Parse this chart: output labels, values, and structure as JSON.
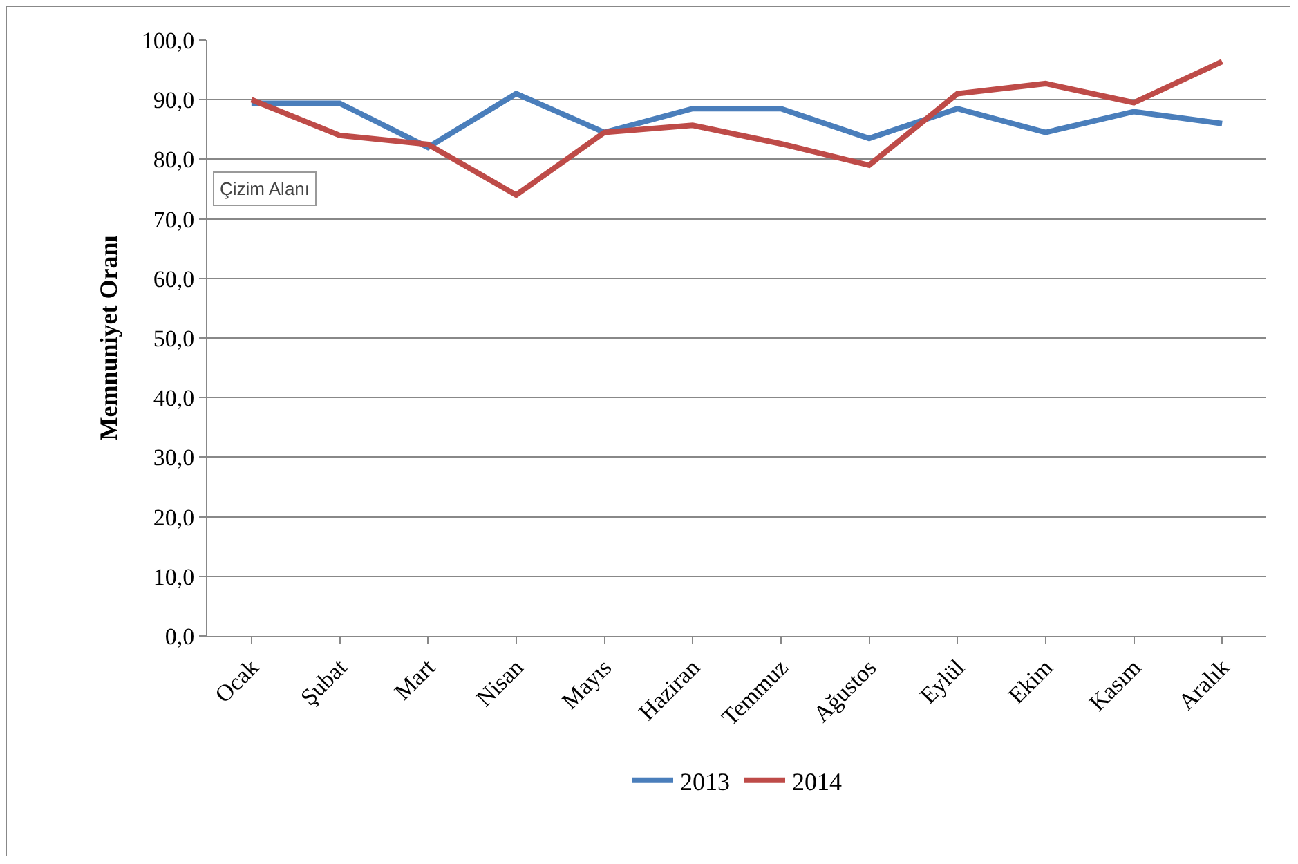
{
  "chart_data": {
    "type": "line",
    "ylabel": "Memnuniyet Oranı",
    "categories": [
      "Ocak",
      "Şubat",
      "Mart",
      "Nisan",
      "Mayıs",
      "Haziran",
      "Temmuz",
      "Ağustos",
      "Eylül",
      "Ekim",
      "Kasım",
      "Aralık"
    ],
    "series": [
      {
        "name": "2013",
        "color": "#4a7ebb",
        "values": [
          89.4,
          89.4,
          82.0,
          91.0,
          84.5,
          88.5,
          88.5,
          83.5,
          88.5,
          84.5,
          88.0,
          86.0
        ]
      },
      {
        "name": "2014",
        "color": "#be4b48",
        "values": [
          90.0,
          84.0,
          82.5,
          74.0,
          84.5,
          85.7,
          82.6,
          79.0,
          91.0,
          92.7,
          89.5,
          96.4
        ]
      }
    ],
    "ylim": [
      0,
      100
    ],
    "yticks": [
      {
        "value": 0,
        "label": "0,0"
      },
      {
        "value": 10,
        "label": "10,0"
      },
      {
        "value": 20,
        "label": "20,0"
      },
      {
        "value": 30,
        "label": "30,0"
      },
      {
        "value": 40,
        "label": "40,0"
      },
      {
        "value": 50,
        "label": "50,0"
      },
      {
        "value": 60,
        "label": "60,0"
      },
      {
        "value": 70,
        "label": "70,0"
      },
      {
        "value": 80,
        "label": "80,0"
      },
      {
        "value": 90,
        "label": "90,0"
      },
      {
        "value": 100,
        "label": "100,0"
      }
    ],
    "grid": "y",
    "legend": "bottom",
    "marker": "none",
    "line_style": "solid",
    "annotations": [
      "Çizim Alanı"
    ]
  }
}
